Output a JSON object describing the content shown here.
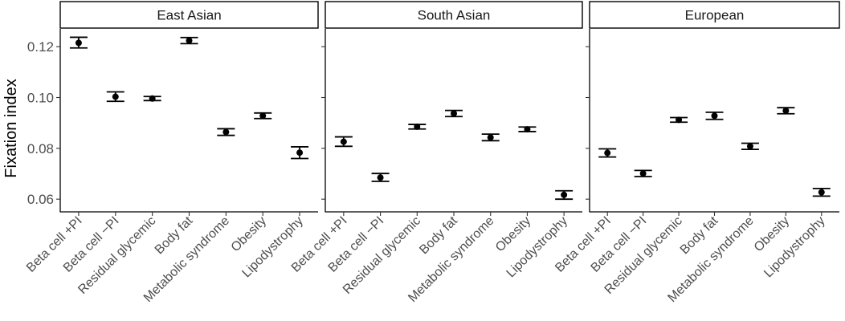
{
  "chart_data": {
    "type": "scatter",
    "ylabel": "Fixation index",
    "ylim": [
      0.055,
      0.127
    ],
    "yticks": [
      0.06,
      0.08,
      0.1,
      0.12
    ],
    "ytick_labels": [
      "0.06",
      "0.08",
      "0.10",
      "0.12"
    ],
    "categories": [
      "Beta cell +PI",
      "Beta cell −PI",
      "Residual glycemic",
      "Body fat",
      "Metabolic syndrome",
      "Obesity",
      "Lipodystrophy"
    ],
    "grid": false,
    "panels": [
      {
        "name": "East Asian",
        "values": [
          0.1215,
          0.1003,
          0.0996,
          0.1224,
          0.0864,
          0.0928,
          0.0783
        ],
        "lower": [
          0.1195,
          0.0985,
          0.0988,
          0.1212,
          0.0851,
          0.0917,
          0.076
        ],
        "upper": [
          0.1237,
          0.1022,
          0.1004,
          0.1236,
          0.0877,
          0.0939,
          0.0806
        ]
      },
      {
        "name": "South Asian",
        "values": [
          0.0826,
          0.0685,
          0.0885,
          0.0937,
          0.0843,
          0.0875,
          0.0617
        ],
        "lower": [
          0.0808,
          0.067,
          0.0876,
          0.0925,
          0.083,
          0.0866,
          0.06
        ],
        "upper": [
          0.0845,
          0.0701,
          0.0894,
          0.0949,
          0.0856,
          0.0884,
          0.0633
        ]
      },
      {
        "name": "European",
        "values": [
          0.0782,
          0.0701,
          0.0912,
          0.0928,
          0.0808,
          0.0948,
          0.0627
        ],
        "lower": [
          0.0766,
          0.0689,
          0.0903,
          0.0914,
          0.0796,
          0.0936,
          0.0612
        ],
        "upper": [
          0.0798,
          0.0713,
          0.0921,
          0.0942,
          0.082,
          0.096,
          0.0642
        ]
      }
    ]
  }
}
